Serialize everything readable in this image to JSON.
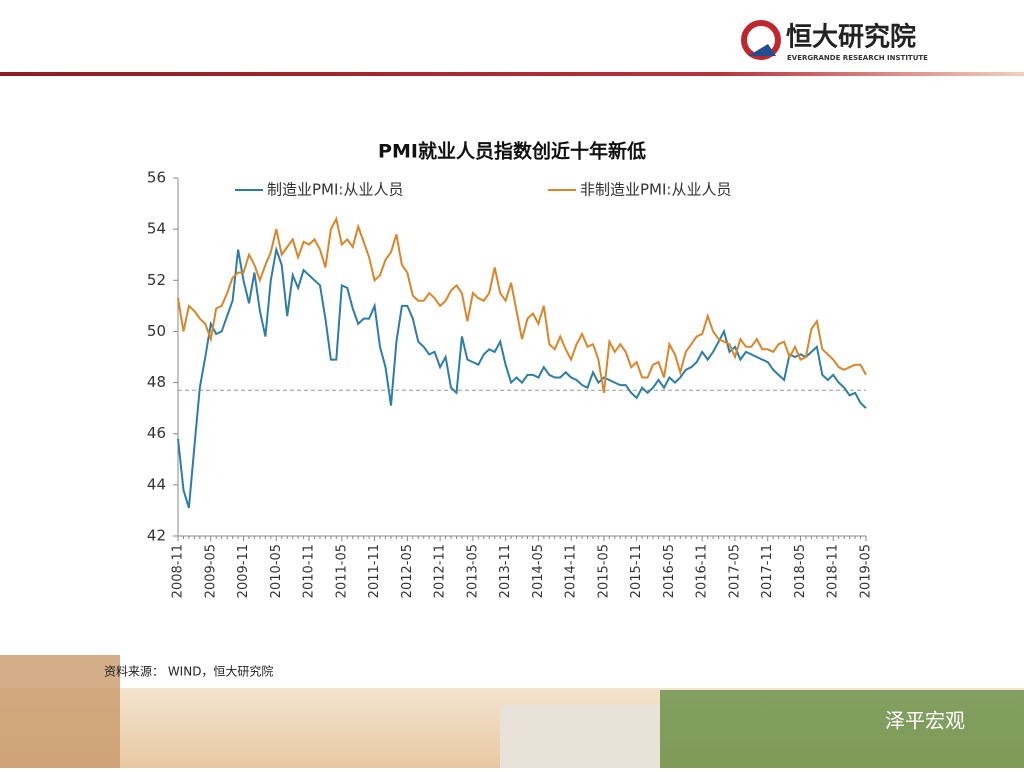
{
  "header": {
    "logo_text": "恒大研究院",
    "logo_subtext": "EVERGRANDE RESEARCH INSTITUTE"
  },
  "chart_data": {
    "type": "line",
    "title": "PMI就业人员指数创近十年新低",
    "categories": [
      "2008-11",
      null,
      null,
      null,
      null,
      null,
      "2009-05",
      null,
      null,
      null,
      null,
      null,
      "2009-11",
      null,
      null,
      null,
      null,
      null,
      "2010-05",
      null,
      null,
      null,
      null,
      null,
      "2010-11",
      null,
      null,
      null,
      null,
      null,
      "2011-05",
      null,
      null,
      null,
      null,
      null,
      "2011-11",
      null,
      null,
      null,
      null,
      null,
      "2012-05",
      null,
      null,
      null,
      null,
      null,
      "2012-11",
      null,
      null,
      null,
      null,
      null,
      "2013-05",
      null,
      null,
      null,
      null,
      null,
      "2013-11",
      null,
      null,
      null,
      null,
      null,
      "2014-05",
      null,
      null,
      null,
      null,
      null,
      "2014-11",
      null,
      null,
      null,
      null,
      null,
      "2015-05",
      null,
      null,
      null,
      null,
      null,
      "2015-11",
      null,
      null,
      null,
      null,
      null,
      "2016-05",
      null,
      null,
      null,
      null,
      null,
      "2016-11",
      null,
      null,
      null,
      null,
      null,
      "2017-05",
      null,
      null,
      null,
      null,
      null,
      "2017-11",
      null,
      null,
      null,
      null,
      null,
      "2018-05",
      null,
      null,
      null,
      null,
      null,
      "2018-11",
      null,
      null,
      null,
      null,
      null,
      "2019-05"
    ],
    "series": [
      {
        "name": "制造业PMI:从业人员",
        "color": "#2e7da6",
        "values": [
          45.8,
          43.8,
          43.1,
          45.5,
          47.8,
          49.0,
          50.3,
          49.9,
          50.0,
          50.6,
          51.2,
          53.2,
          52.0,
          51.1,
          52.3,
          50.8,
          49.8,
          52.0,
          53.2,
          52.6,
          50.6,
          52.2,
          51.7,
          52.4,
          52.2,
          52.0,
          51.8,
          50.5,
          48.9,
          48.9,
          51.8,
          51.7,
          50.9,
          50.3,
          50.5,
          50.5,
          51.0,
          49.4,
          48.6,
          47.1,
          49.6,
          51.0,
          51.0,
          50.5,
          49.6,
          49.4,
          49.1,
          49.2,
          48.6,
          49.0,
          47.8,
          47.6,
          49.8,
          48.9,
          48.8,
          48.7,
          49.1,
          49.3,
          49.2,
          49.6,
          48.7,
          48.0,
          48.2,
          48.0,
          48.3,
          48.3,
          48.2,
          48.6,
          48.3,
          48.2,
          48.2,
          48.4,
          48.2,
          48.1,
          47.9,
          47.8,
          48.4,
          48.0,
          48.2,
          48.1,
          48.0,
          47.9,
          47.9,
          47.6,
          47.4,
          47.8,
          47.6,
          47.8,
          48.1,
          47.8,
          48.2,
          48.0,
          48.2,
          48.5,
          48.6,
          48.8,
          49.2,
          48.9,
          49.2,
          49.6,
          50.0,
          49.2,
          49.4,
          48.9,
          49.2,
          49.1,
          49.0,
          48.9,
          48.8,
          48.5,
          48.3,
          48.1,
          49.1,
          49.0,
          49.1,
          49.0,
          49.2,
          49.4,
          48.3,
          48.1,
          48.3,
          48.0,
          47.8,
          47.5,
          47.6,
          47.2,
          47.0
        ]
      },
      {
        "name": "非制造业PMI:从业人员",
        "color": "#d9862b",
        "values": [
          51.3,
          50.0,
          51.0,
          50.8,
          50.5,
          50.3,
          49.7,
          50.9,
          51.0,
          51.5,
          52.1,
          52.3,
          52.3,
          53.0,
          52.6,
          52.0,
          52.6,
          53.1,
          54.0,
          53.0,
          53.3,
          53.6,
          52.9,
          53.5,
          53.4,
          53.6,
          53.2,
          52.5,
          54.0,
          54.4,
          53.4,
          53.6,
          53.3,
          54.1,
          53.5,
          52.9,
          52.0,
          52.2,
          52.8,
          53.1,
          53.8,
          52.6,
          52.3,
          51.4,
          51.2,
          51.2,
          51.5,
          51.3,
          51.0,
          51.2,
          51.6,
          51.8,
          51.5,
          50.4,
          51.5,
          51.3,
          51.2,
          51.5,
          52.5,
          51.5,
          51.2,
          51.9,
          50.8,
          49.7,
          50.5,
          50.7,
          50.3,
          51.0,
          49.5,
          49.3,
          49.8,
          49.3,
          48.9,
          49.5,
          49.9,
          49.4,
          49.5,
          48.9,
          47.6,
          49.6,
          49.2,
          49.5,
          49.2,
          48.6,
          48.8,
          48.2,
          48.2,
          48.7,
          48.8,
          48.2,
          49.5,
          49.1,
          48.4,
          49.2,
          49.5,
          49.8,
          49.9,
          50.6,
          50.0,
          49.7,
          49.6,
          49.5,
          49.0,
          49.7,
          49.4,
          49.4,
          49.7,
          49.3,
          49.3,
          49.2,
          49.5,
          49.6,
          49.0,
          49.4,
          48.9,
          49.0,
          50.1,
          50.4,
          49.3,
          49.1,
          48.9,
          48.6,
          48.5,
          48.6,
          48.7,
          48.7,
          48.3
        ]
      }
    ],
    "reference_line": 47.7,
    "ylim": [
      42,
      56
    ],
    "yticks": [
      42,
      44,
      46,
      48,
      50,
      52,
      54,
      56
    ],
    "source": "资料来源： WIND，恒大研究院"
  },
  "watermark": "泽平宏观"
}
